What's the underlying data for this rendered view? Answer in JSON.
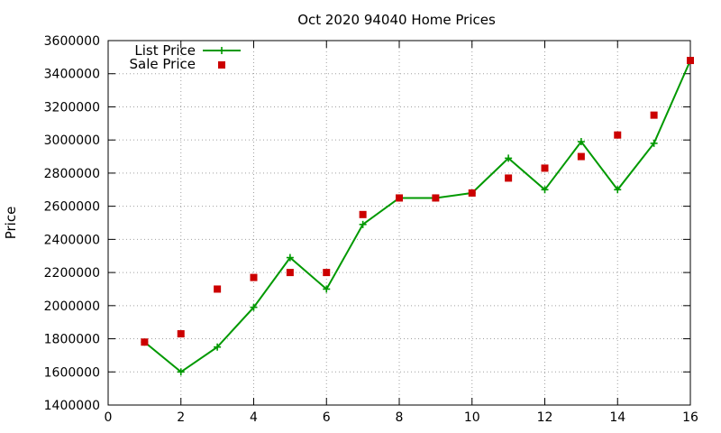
{
  "chart_data": {
    "type": "line",
    "title": "Oct 2020 94040 Home Prices",
    "xlabel": "",
    "ylabel": "Price",
    "xlim": [
      0,
      16
    ],
    "ylim": [
      1400000,
      3600000
    ],
    "x_ticks": [
      0,
      2,
      4,
      6,
      8,
      10,
      12,
      14,
      16
    ],
    "y_ticks": [
      1400000,
      1600000,
      1800000,
      2000000,
      2200000,
      2400000,
      2600000,
      2800000,
      3000000,
      3200000,
      3400000,
      3600000
    ],
    "x_tick_labels": [
      "0",
      "2",
      "4",
      "6",
      "8",
      "10",
      "12",
      "14",
      "16"
    ],
    "y_tick_labels": [
      "1400000",
      "1600000",
      "1800000",
      "2000000",
      "2200000",
      "2400000",
      "2600000",
      "2800000",
      "3000000",
      "3200000",
      "3400000",
      "3600000"
    ],
    "grid": true,
    "legend_position": "top-left",
    "series": [
      {
        "name": "List Price",
        "style": "line-plus",
        "color": "#009900",
        "x": [
          1,
          2,
          3,
          4,
          5,
          6,
          7,
          8,
          9,
          10,
          11,
          12,
          13,
          14,
          15,
          16
        ],
        "y": [
          1780000,
          1600000,
          1750000,
          1990000,
          2290000,
          2100000,
          2490000,
          2650000,
          2650000,
          2680000,
          2890000,
          2700000,
          2990000,
          2700000,
          2980000,
          3480000
        ]
      },
      {
        "name": "Sale Price",
        "style": "square-points",
        "color": "#cc0000",
        "x": [
          1,
          2,
          3,
          4,
          5,
          6,
          7,
          8,
          9,
          10,
          11,
          12,
          13,
          14,
          15,
          16
        ],
        "y": [
          1780000,
          1830000,
          2100000,
          2170000,
          2200000,
          2200000,
          2550000,
          2650000,
          2650000,
          2680000,
          2770000,
          2830000,
          2900000,
          3030000,
          3150000,
          3480000
        ]
      }
    ]
  }
}
